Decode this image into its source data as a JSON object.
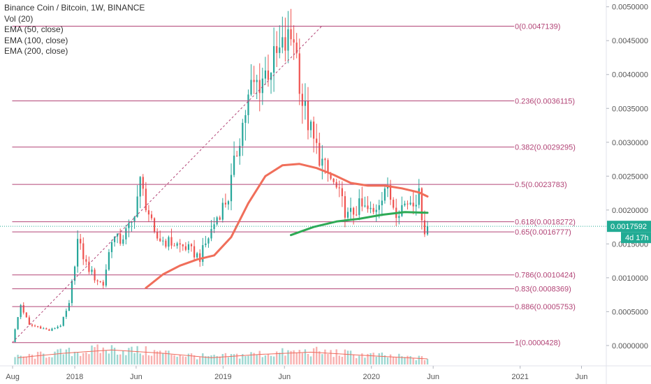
{
  "chart_data": {
    "type": "candlestick",
    "title": "Binance Coin / Bitcoin, 1W, BINANCE",
    "indicators": [
      "Vol (20)",
      "EMA (50, close)",
      "EMA (100, close)",
      "EMA (200, close)"
    ],
    "y_axis": {
      "ylim": [
        -0.0003,
        0.0051
      ],
      "ticks": [
        "0.0050000",
        "0.0045000",
        "0.0040000",
        "0.0035000",
        "0.0030000",
        "0.0025000",
        "0.0020000",
        "0.0015000",
        "0.0010000",
        "0.0005000",
        "0.0000000"
      ],
      "tick_values": [
        0.005,
        0.0045,
        0.004,
        0.0035,
        0.003,
        0.0025,
        0.002,
        0.0015,
        0.001,
        0.0005,
        0.0
      ]
    },
    "x_axis": {
      "range": [
        "2017-07-01",
        "2021-08-01"
      ],
      "ticks": [
        {
          "label": "Aug",
          "date": "2017-08-01"
        },
        {
          "label": "2018",
          "date": "2018-01-01"
        },
        {
          "label": "Jun",
          "date": "2018-06-01"
        },
        {
          "label": "2019",
          "date": "2019-01-01"
        },
        {
          "label": "Jun",
          "date": "2019-06-01"
        },
        {
          "label": "2020",
          "date": "2020-01-01"
        },
        {
          "label": "Jun",
          "date": "2020-06-01"
        },
        {
          "label": "2021",
          "date": "2021-01-01"
        },
        {
          "label": "Jun",
          "date": "2021-06-01"
        }
      ]
    },
    "last_price": {
      "value": 0.0017592,
      "label": "0.0017592",
      "countdown": "4d 17h"
    },
    "fibonacci": [
      {
        "level": "0",
        "value": 0.0047139,
        "label": "0(0.0047139)"
      },
      {
        "level": "0.236",
        "value": 0.0036115,
        "label": "0.236(0.0036115)"
      },
      {
        "level": "0.382",
        "value": 0.0029295,
        "label": "0.382(0.0029295)"
      },
      {
        "level": "0.5",
        "value": 0.0023783,
        "label": "0.5(0.0023783)"
      },
      {
        "level": "0.618",
        "value": 0.0018272,
        "label": "0.618(0.0018272)"
      },
      {
        "level": "0.65",
        "value": 0.0016777,
        "label": "0.65(0.0016777)"
      },
      {
        "level": "0.786",
        "value": 0.0010424,
        "label": "0.786(0.0010424)"
      },
      {
        "level": "0.83",
        "value": 0.0008369,
        "label": "0.83(0.0008369)"
      },
      {
        "level": "0.886",
        "value": 0.0005753,
        "label": "0.886(0.0005753)"
      },
      {
        "level": "1",
        "value": 4.28e-05,
        "label": "1(0.0000428)"
      }
    ],
    "fib_anchor": {
      "start_date": "2017-07-31",
      "start_value": 4.28e-05,
      "end_date": "2019-06-24",
      "end_value": 0.0047139
    },
    "price_path": [
      [
        "2017-07-31",
        5e-05
      ],
      [
        "2017-08-21",
        0.0006
      ],
      [
        "2017-09-11",
        0.0003
      ],
      [
        "2017-10-02",
        0.00028
      ],
      [
        "2017-10-30",
        0.00022
      ],
      [
        "2017-11-27",
        0.0003
      ],
      [
        "2017-12-18",
        0.0006
      ],
      [
        "2018-01-08",
        0.00155
      ],
      [
        "2018-01-29",
        0.0012
      ],
      [
        "2018-02-19",
        0.001
      ],
      [
        "2018-03-12",
        0.0009
      ],
      [
        "2018-04-02",
        0.0016
      ],
      [
        "2018-04-23",
        0.00155
      ],
      [
        "2018-05-21",
        0.0018
      ],
      [
        "2018-06-11",
        0.0024
      ],
      [
        "2018-07-02",
        0.00195
      ],
      [
        "2018-07-16",
        0.0016
      ],
      [
        "2018-08-06",
        0.00155
      ],
      [
        "2018-09-03",
        0.0015
      ],
      [
        "2018-10-01",
        0.00145
      ],
      [
        "2018-11-05",
        0.0013
      ],
      [
        "2018-11-26",
        0.0016
      ],
      [
        "2018-12-17",
        0.0019
      ],
      [
        "2019-01-14",
        0.0022
      ],
      [
        "2019-02-11",
        0.0031
      ],
      [
        "2019-03-11",
        0.0038
      ],
      [
        "2019-04-01",
        0.0039
      ],
      [
        "2019-05-06",
        0.0042
      ],
      [
        "2019-06-24",
        0.0046
      ],
      [
        "2019-07-15",
        0.0036
      ],
      [
        "2019-08-12",
        0.003
      ],
      [
        "2019-09-09",
        0.0026
      ],
      [
        "2019-10-07",
        0.0023
      ],
      [
        "2019-11-04",
        0.0019
      ],
      [
        "2019-12-02",
        0.00205
      ],
      [
        "2020-01-06",
        0.00195
      ],
      [
        "2020-02-03",
        0.00235
      ],
      [
        "2020-03-02",
        0.002
      ],
      [
        "2020-04-06",
        0.00215
      ],
      [
        "2020-04-27",
        0.0022
      ],
      [
        "2020-05-11",
        0.0017
      ],
      [
        "2020-05-18",
        0.0017592
      ]
    ],
    "ema_100": [
      [
        "2018-06-25",
        0.00085
      ],
      [
        "2018-08-06",
        0.00105
      ],
      [
        "2018-09-17",
        0.00118
      ],
      [
        "2018-10-29",
        0.00127
      ],
      [
        "2018-12-10",
        0.00133
      ],
      [
        "2019-01-21",
        0.0016
      ],
      [
        "2019-03-04",
        0.0021
      ],
      [
        "2019-04-15",
        0.0025
      ],
      [
        "2019-05-27",
        0.00266
      ],
      [
        "2019-07-08",
        0.00268
      ],
      [
        "2019-08-19",
        0.00262
      ],
      [
        "2019-09-30",
        0.00252
      ],
      [
        "2019-11-11",
        0.0024
      ],
      [
        "2019-12-23",
        0.00236
      ],
      [
        "2020-02-03",
        0.00236
      ],
      [
        "2020-03-16",
        0.00232
      ],
      [
        "2020-04-27",
        0.00226
      ],
      [
        "2020-05-18",
        0.0022
      ]
    ],
    "ema_200": [
      [
        "2019-06-17",
        0.00163
      ],
      [
        "2019-08-12",
        0.00175
      ],
      [
        "2019-10-07",
        0.00183
      ],
      [
        "2019-12-02",
        0.00187
      ],
      [
        "2020-01-27",
        0.00193
      ],
      [
        "2020-03-23",
        0.00197
      ],
      [
        "2020-05-18",
        0.00196
      ]
    ],
    "volume_ma_path": [
      [
        "2017-08-14",
        0.3
      ],
      [
        "2017-12-04",
        0.5
      ],
      [
        "2018-04-02",
        0.65
      ],
      [
        "2018-08-06",
        0.5
      ],
      [
        "2018-12-03",
        0.3
      ],
      [
        "2019-04-01",
        0.45
      ],
      [
        "2019-08-05",
        0.55
      ],
      [
        "2019-12-02",
        0.42
      ],
      [
        "2020-05-18",
        0.25
      ]
    ],
    "colors": {
      "up": "#26a69a",
      "down": "#ef5350",
      "fib": "#b24476",
      "ema_100": "#f06e5a",
      "ema_200": "#2eaa55",
      "last_price": "#22ab94",
      "vol_ma": "#ef6a5c",
      "axis_text": "#555555"
    }
  }
}
